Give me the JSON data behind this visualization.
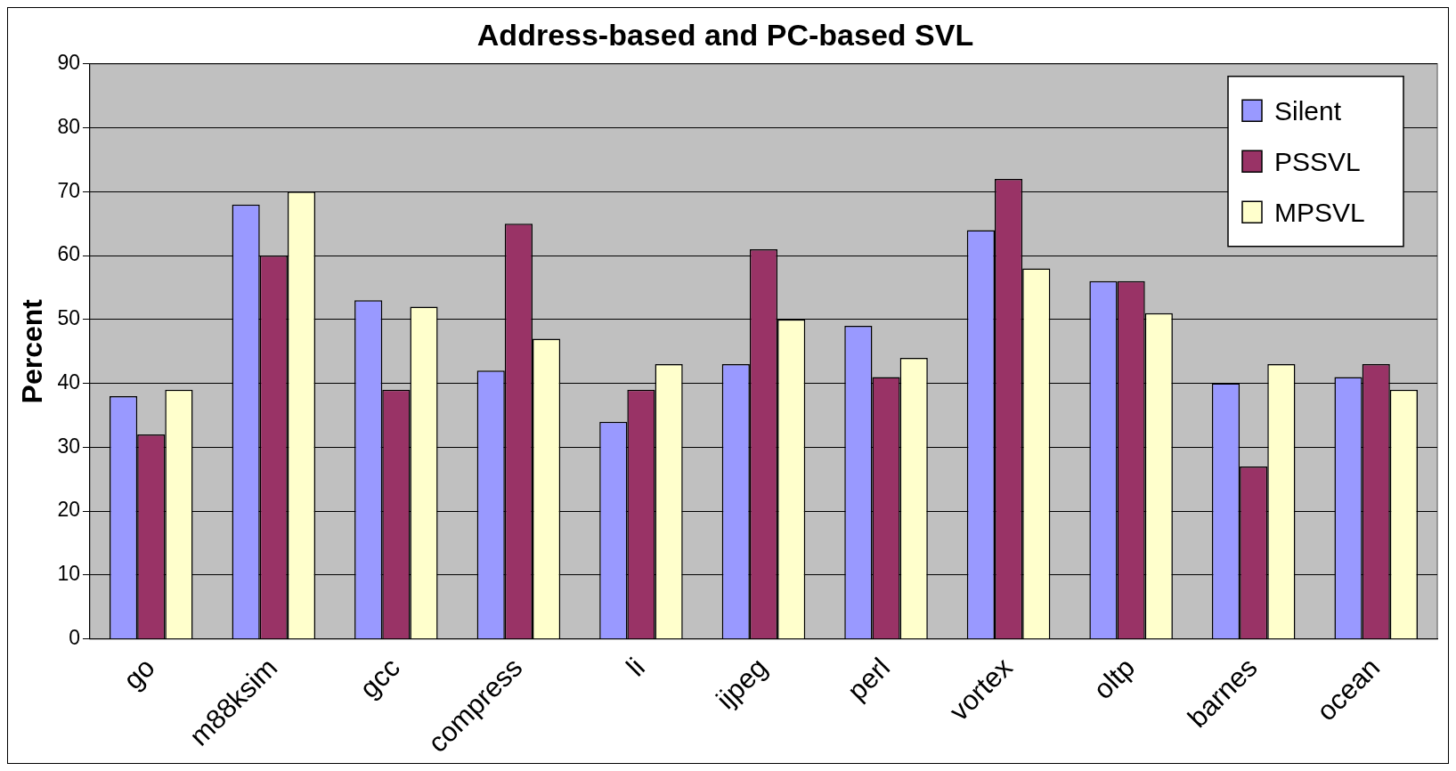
{
  "chart_data": {
    "type": "bar",
    "title": "Address-based and PC-based SVL",
    "ylabel": "Percent",
    "categories": [
      "go",
      "m88ksim",
      "gcc",
      "compress",
      "li",
      "ijpeg",
      "perl",
      "vortex",
      "oltp",
      "barnes",
      "ocean"
    ],
    "series": [
      {
        "name": "Silent",
        "color": "#9999ff",
        "values": [
          38,
          68,
          53,
          42,
          34,
          43,
          49,
          64,
          56,
          40,
          41
        ]
      },
      {
        "name": "PSSVL",
        "color": "#993366",
        "values": [
          32,
          60,
          39,
          65,
          39,
          61,
          41,
          72,
          56,
          27,
          43
        ]
      },
      {
        "name": "MPSVL",
        "color": "#ffffcc",
        "values": [
          39,
          70,
          52,
          47,
          43,
          50,
          44,
          58,
          51,
          43,
          39
        ]
      }
    ],
    "ylim": [
      0,
      90
    ],
    "yticks": [
      0,
      10,
      20,
      30,
      40,
      50,
      60,
      70,
      80,
      90
    ],
    "grid": "y",
    "legend": "top right"
  }
}
